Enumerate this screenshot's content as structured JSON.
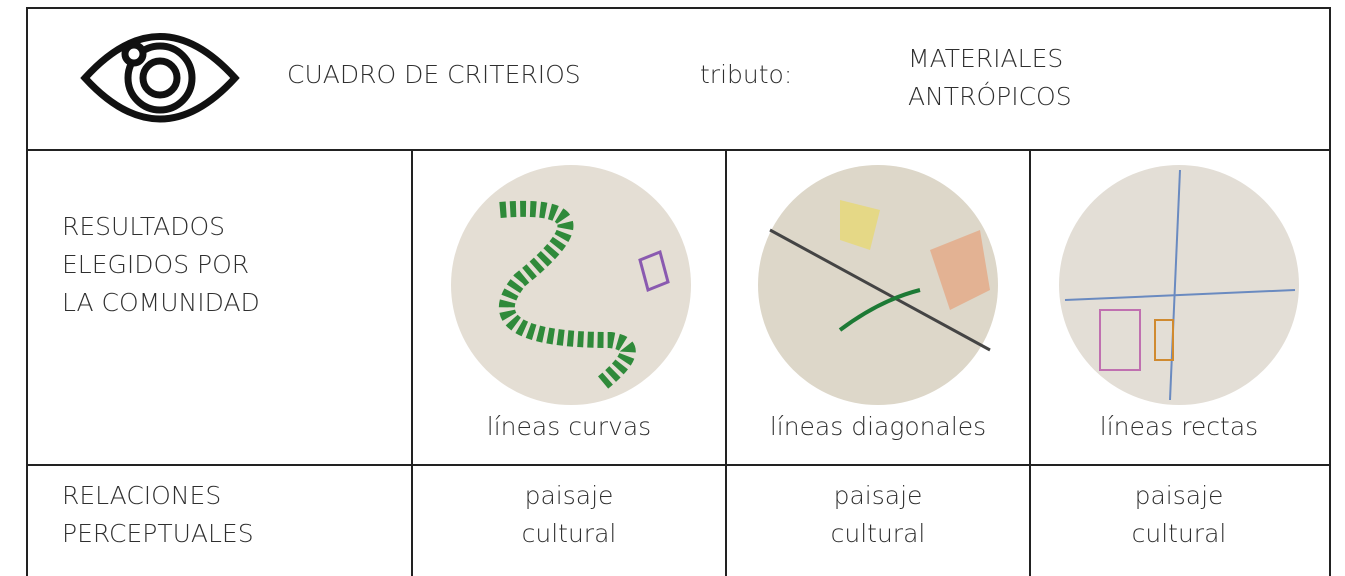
{
  "header": {
    "title": "CUADRO DE CRITERIOS",
    "attribute_label": "tributo:",
    "attribute_value": [
      "MATERIALES",
      "ANTRÓPICOS"
    ]
  },
  "table": {
    "rows": [
      {
        "label": [
          "RESULTADOS",
          "ELEGIDOS POR",
          "LA COMUNIDAD"
        ],
        "cells": [
          "líneas curvas",
          "líneas diagonales",
          "líneas rectas"
        ]
      },
      {
        "label": [
          "RELACIONES",
          "PERCEPTUALES"
        ],
        "cells": [
          [
            "paisaje",
            "cultural"
          ],
          [
            "paisaje",
            "cultural"
          ],
          [
            "paisaje",
            "cultural"
          ]
        ]
      }
    ]
  }
}
